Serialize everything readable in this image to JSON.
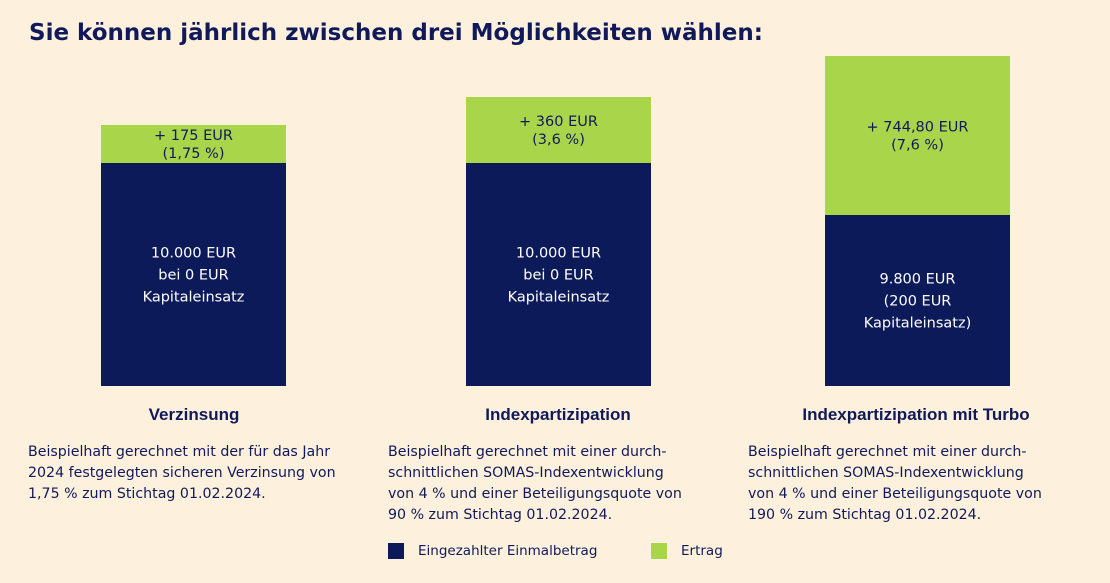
{
  "title": "Sie können jährlich zwischen drei Möglichkeiten wählen:",
  "colors": {
    "einmalbetrag": "#0d1a5a",
    "ertrag": "#a9d54a",
    "background": "#fdf0dc"
  },
  "chart_data": {
    "type": "bar",
    "stacked": true,
    "categories": [
      "Verzinsung",
      "Indexpartizipation",
      "Indexpartizipation mit Turbo"
    ],
    "series": [
      {
        "name": "Eingezahlter Einmalbetrag",
        "values": [
          10000,
          10000,
          9800
        ],
        "labels": [
          [
            "10.000 EUR",
            "bei 0 EUR",
            "Kapitaleinsatz"
          ],
          [
            "10.000 EUR",
            "bei 0 EUR",
            "Kapitaleinsatz"
          ],
          [
            "9.800 EUR",
            "(200 EUR",
            "Kapitaleinsatz)"
          ]
        ]
      },
      {
        "name": "Ertrag",
        "values": [
          175,
          360,
          744.8
        ],
        "labels": [
          [
            "+ 175 EUR",
            "(1,75 %)"
          ],
          [
            "+ 360 EUR",
            "(3,6 %)"
          ],
          [
            "+ 744,80 EUR",
            "(7,6 %)"
          ]
        ]
      }
    ],
    "legend_position": "bottom"
  },
  "columns": [
    {
      "title": "Verzinsung",
      "description": [
        "Beispielhaft gerechnet mit der für das Jahr",
        "2024 festgelegten sicheren Verzinsung von",
        "1,75 % zum Stichtag 01.02.2024."
      ]
    },
    {
      "title": "Indexpartizipation",
      "description": [
        "Beispielhaft gerechnet mit einer durch-",
        "schnittlichen SOMAS-Indexentwicklung",
        "von 4 % und einer Beteiligungsquote von",
        "90 % zum Stichtag 01.02.2024."
      ]
    },
    {
      "title": "Indexpartizipation mit Turbo",
      "description": [
        "Beispielhaft gerechnet mit einer durch-",
        "schnittlichen SOMAS-Indexentwicklung",
        "von 4 % und einer Beteiligungsquote von",
        "190 % zum Stichtag 01.02.2024."
      ]
    }
  ],
  "legend": [
    {
      "label": "Eingezahlter Einmalbetrag"
    },
    {
      "label": "Ertrag"
    }
  ]
}
